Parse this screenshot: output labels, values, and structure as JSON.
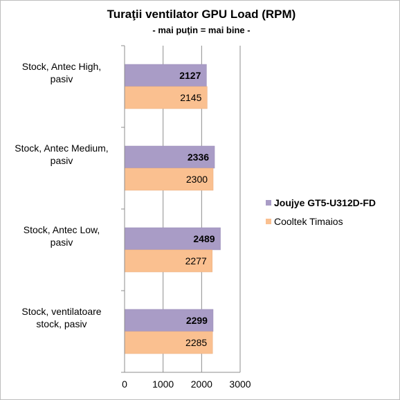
{
  "chart_data": {
    "type": "bar",
    "orientation": "horizontal",
    "title": "Turaţii ventilator GPU Load (RPM)",
    "subtitle": "- mai puţin = mai bine -",
    "categories": [
      [
        "Stock, Antec High,",
        "pasiv"
      ],
      [
        "Stock, Antec Medium,",
        "pasiv"
      ],
      [
        "Stock, Antec Low,",
        "pasiv"
      ],
      [
        "Stock, ventilatoare",
        "stock, pasiv"
      ]
    ],
    "series": [
      {
        "name": "Joujye GT5-U312D-FD",
        "values": [
          2127,
          2336,
          2489,
          2299
        ],
        "color": "#a99cc6",
        "label_bold": true
      },
      {
        "name": "Cooltek Timaios",
        "values": [
          2145,
          2300,
          2277,
          2285
        ],
        "color": "#fac090",
        "label_bold": false
      }
    ],
    "xlim": [
      0,
      3000
    ],
    "xticks": [
      0,
      1000,
      2000,
      3000
    ],
    "grid": true,
    "legend_position": "right",
    "data_labels": true
  }
}
